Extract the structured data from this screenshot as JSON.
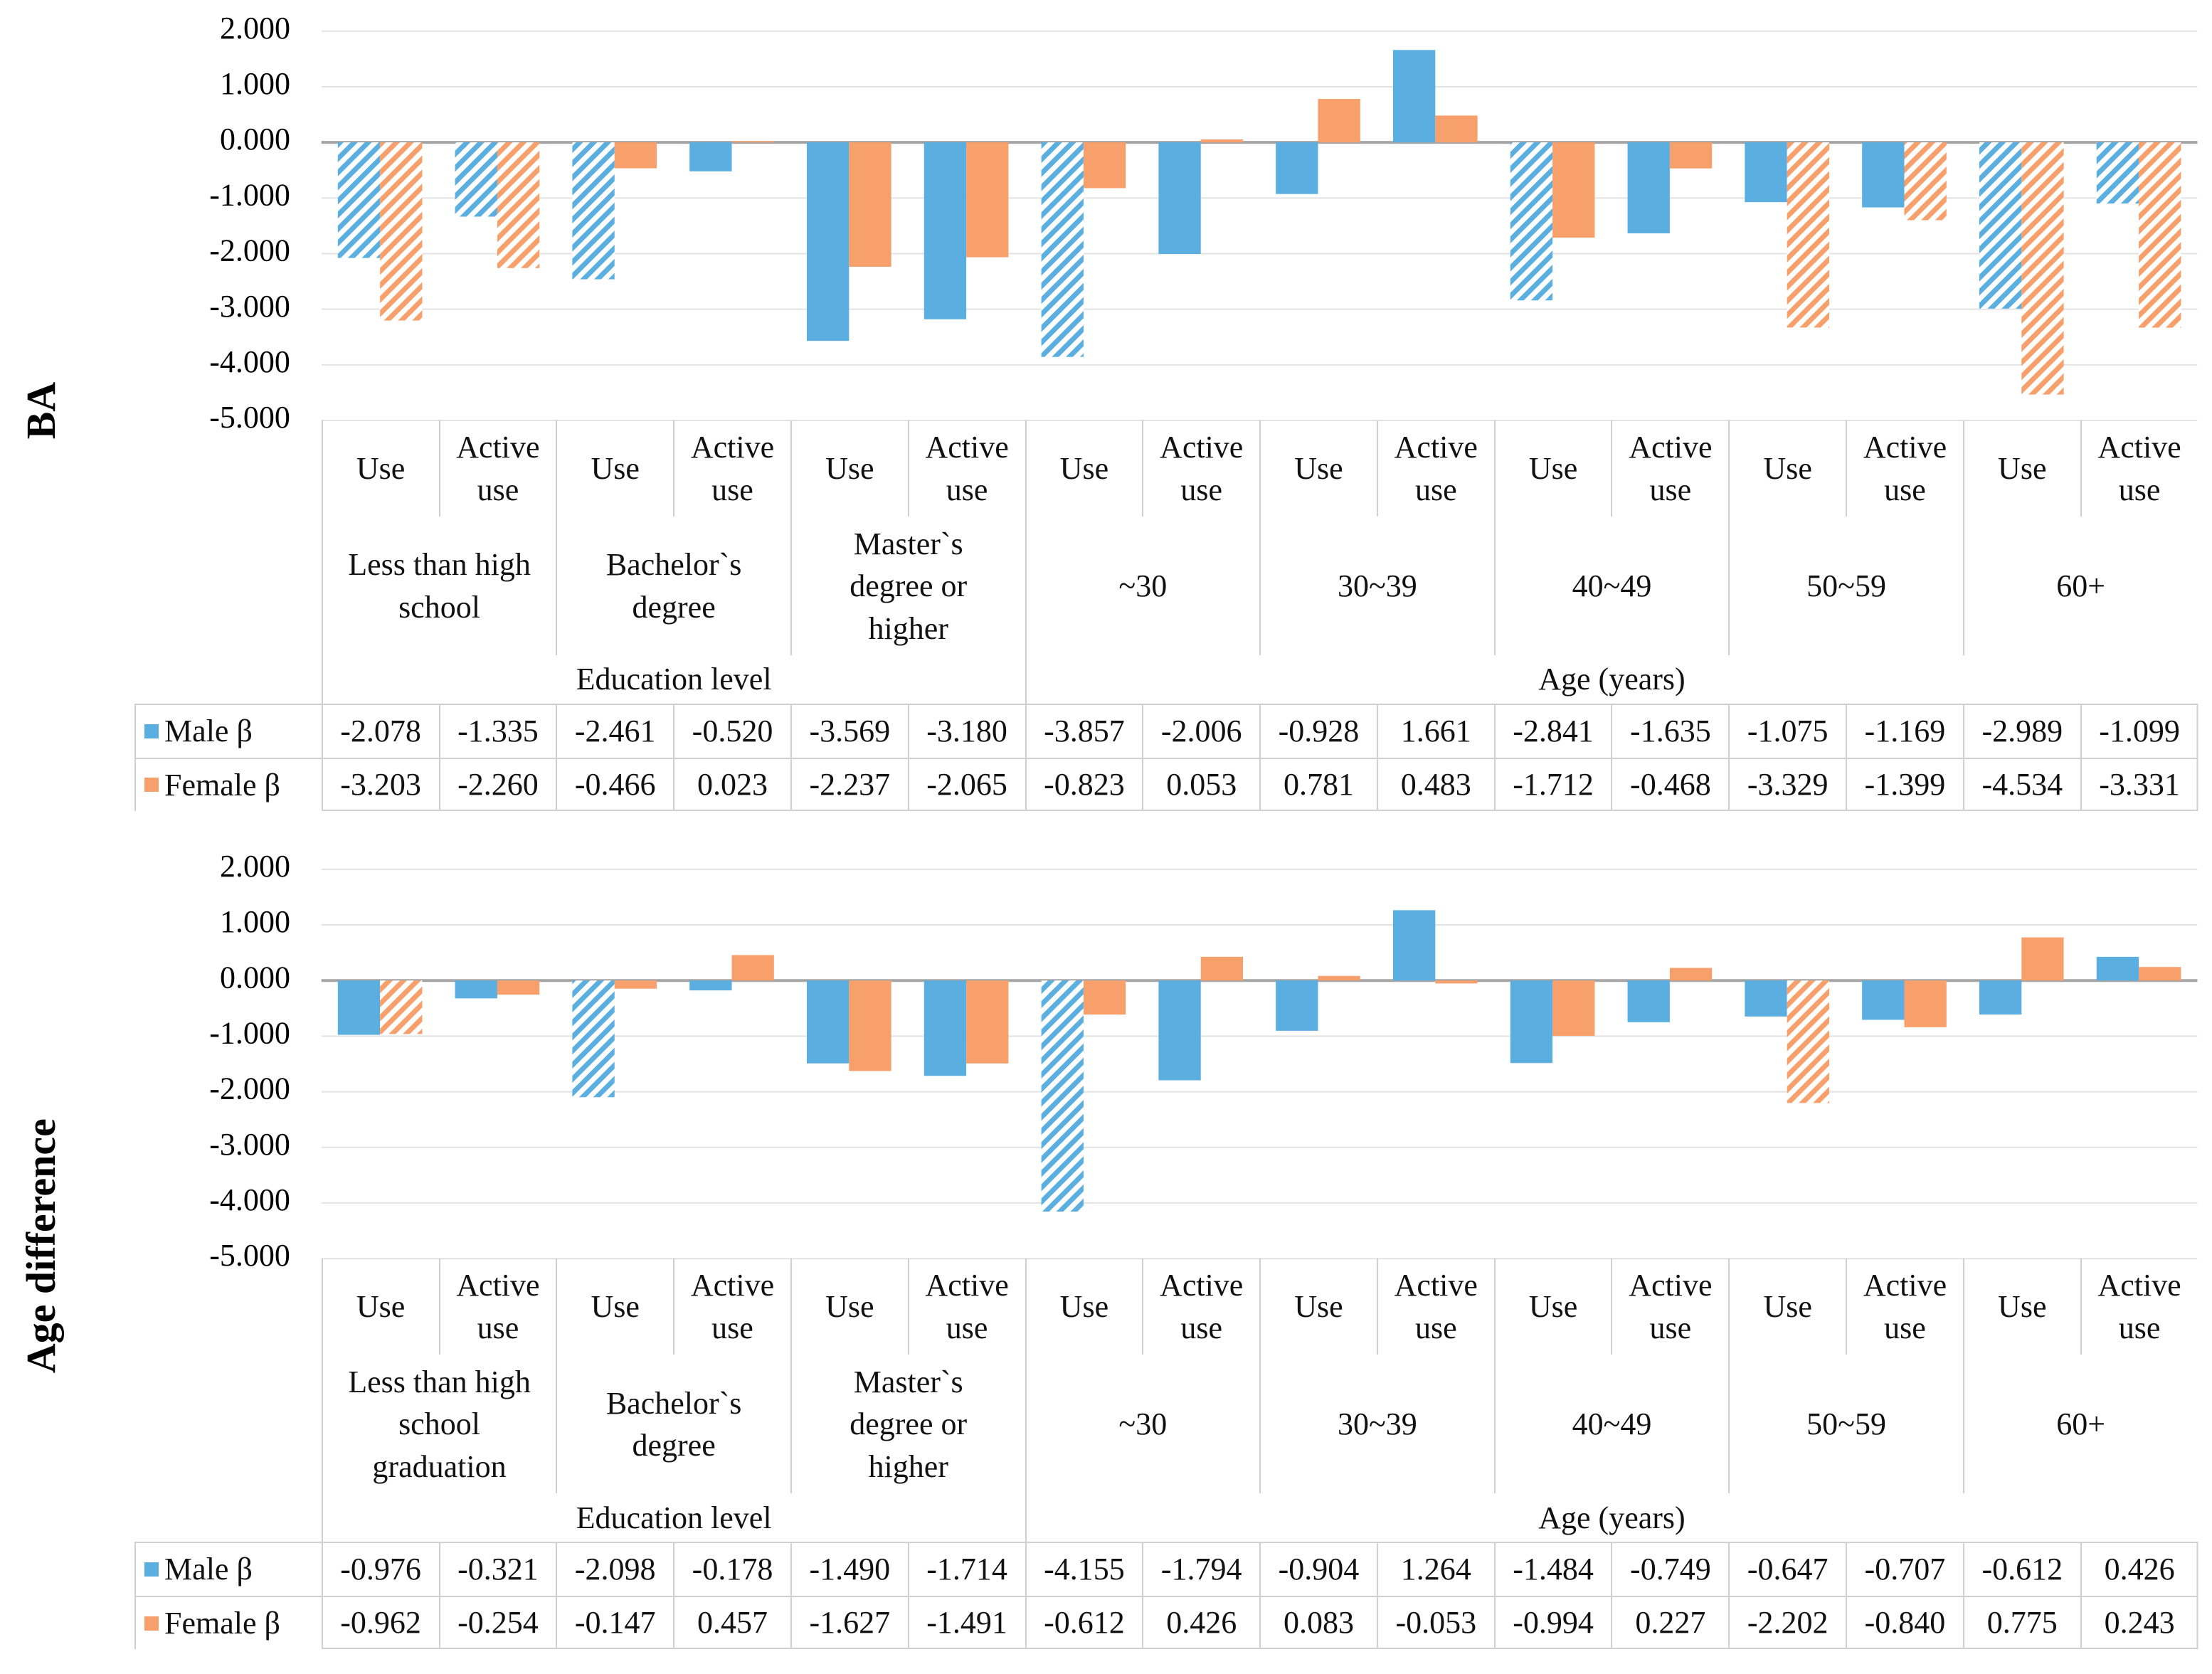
{
  "chart_data": [
    {
      "type": "bar",
      "y_label": "BA",
      "ylim": [
        -5,
        2
      ],
      "yticks": [
        {
          "value": 2,
          "label": "2.000"
        },
        {
          "value": 1,
          "label": "1.000"
        },
        {
          "value": 0,
          "label": "0.000"
        },
        {
          "value": -1,
          "label": "-1.000"
        },
        {
          "value": -2,
          "label": "-2.000"
        },
        {
          "value": -3,
          "label": "-3.000"
        },
        {
          "value": -4,
          "label": "-4.000"
        },
        {
          "value": -5,
          "label": "-5.000"
        }
      ],
      "grid": true,
      "categories": [
        [
          "Use",
          "Less than high school",
          "Education level"
        ],
        [
          "Active use",
          "Less than high school",
          "Education level"
        ],
        [
          "Use",
          "Bachelor`s degree",
          "Education level"
        ],
        [
          "Active use",
          "Bachelor`s degree",
          "Education level"
        ],
        [
          "Use",
          "Master`s degree or higher",
          "Education level"
        ],
        [
          "Active use",
          "Master`s degree or higher",
          "Education level"
        ],
        [
          "Use",
          "~30",
          "Age (years)"
        ],
        [
          "Active use",
          "~30",
          "Age (years)"
        ],
        [
          "Use",
          "30~39",
          "Age (years)"
        ],
        [
          "Active use",
          "30~39",
          "Age (years)"
        ],
        [
          "Use",
          "40~49",
          "Age (years)"
        ],
        [
          "Active use",
          "40~49",
          "Age (years)"
        ],
        [
          "Use",
          "50~59",
          "Age (years)"
        ],
        [
          "Active use",
          "50~59",
          "Age (years)"
        ],
        [
          "Use",
          "60+",
          "Age (years)"
        ],
        [
          "Active use",
          "60+",
          "Age (years)"
        ]
      ],
      "series": [
        {
          "name": "Male β",
          "color": "#5aafe0",
          "values": [
            -2.078,
            -1.335,
            -2.461,
            -0.52,
            -3.569,
            -3.18,
            -3.857,
            -2.006,
            -0.928,
            1.661,
            -2.841,
            -1.635,
            -1.075,
            -1.169,
            -2.989,
            -1.099
          ],
          "value_labels": [
            "-2.078",
            "-1.335",
            "-2.461",
            "-0.520",
            "-3.569",
            "-3.180",
            "-3.857",
            "-2.006",
            "-0.928",
            "1.661",
            "-2.841",
            "-1.635",
            "-1.075",
            "-1.169",
            "-2.989",
            "-1.099"
          ],
          "hatched": [
            true,
            true,
            true,
            false,
            false,
            false,
            true,
            false,
            false,
            false,
            true,
            false,
            false,
            false,
            true,
            true
          ]
        },
        {
          "name": "Female β",
          "color": "#f8a06b",
          "values": [
            -3.203,
            -2.26,
            -0.466,
            0.023,
            -2.237,
            -2.065,
            -0.823,
            0.053,
            0.781,
            0.483,
            -1.712,
            -0.468,
            -3.329,
            -1.399,
            -4.534,
            -3.331
          ],
          "value_labels": [
            "-3.203",
            "-2.260",
            "-0.466",
            "0.023",
            "-2.237",
            "-2.065",
            "-0.823",
            "0.053",
            "0.781",
            "0.483",
            "-1.712",
            "-0.468",
            "-3.329",
            "-1.399",
            "-4.534",
            "-3.331"
          ],
          "hatched": [
            true,
            true,
            false,
            false,
            false,
            false,
            false,
            false,
            false,
            false,
            false,
            false,
            true,
            true,
            true,
            true
          ]
        }
      ]
    },
    {
      "type": "bar",
      "y_label": "Age difference",
      "ylim": [
        -5,
        2
      ],
      "yticks": [
        {
          "value": 2,
          "label": "2.000"
        },
        {
          "value": 1,
          "label": "1.000"
        },
        {
          "value": 0,
          "label": "0.000"
        },
        {
          "value": -1,
          "label": "-1.000"
        },
        {
          "value": -2,
          "label": "-2.000"
        },
        {
          "value": -3,
          "label": "-3.000"
        },
        {
          "value": -4,
          "label": "-4.000"
        },
        {
          "value": -5,
          "label": "-5.000"
        }
      ],
      "grid": true,
      "categories": [
        [
          "Use",
          "Less than high school graduation",
          "Education level"
        ],
        [
          "Active use",
          "Less than high school graduation",
          "Education level"
        ],
        [
          "Use",
          "Bachelor`s degree",
          "Education level"
        ],
        [
          "Active use",
          "Bachelor`s degree",
          "Education level"
        ],
        [
          "Use",
          "Master`s degree or higher",
          "Education level"
        ],
        [
          "Active use",
          "Master`s degree or higher",
          "Education level"
        ],
        [
          "Use",
          "~30",
          "Age (years)"
        ],
        [
          "Active use",
          "~30",
          "Age (years)"
        ],
        [
          "Use",
          "30~39",
          "Age (years)"
        ],
        [
          "Active use",
          "30~39",
          "Age (years)"
        ],
        [
          "Use",
          "40~49",
          "Age (years)"
        ],
        [
          "Active use",
          "40~49",
          "Age (years)"
        ],
        [
          "Use",
          "50~59",
          "Age (years)"
        ],
        [
          "Active use",
          "50~59",
          "Age (years)"
        ],
        [
          "Use",
          "60+",
          "Age (years)"
        ],
        [
          "Active use",
          "60+",
          "Age (years)"
        ]
      ],
      "series": [
        {
          "name": "Male β",
          "color": "#5aafe0",
          "values": [
            -0.976,
            -0.321,
            -2.098,
            -0.178,
            -1.49,
            -1.714,
            -4.155,
            -1.794,
            -0.904,
            1.264,
            -1.484,
            -0.749,
            -0.647,
            -0.707,
            -0.612,
            0.426
          ],
          "value_labels": [
            "-0.976",
            "-0.321",
            "-2.098",
            "-0.178",
            "-1.490",
            "-1.714",
            "-4.155",
            "-1.794",
            "-0.904",
            "1.264",
            "-1.484",
            "-0.749",
            "-0.647",
            "-0.707",
            "-0.612",
            "0.426"
          ],
          "hatched": [
            false,
            false,
            true,
            false,
            false,
            false,
            true,
            false,
            false,
            false,
            false,
            false,
            false,
            false,
            false,
            false
          ]
        },
        {
          "name": "Female β",
          "color": "#f8a06b",
          "values": [
            -0.962,
            -0.254,
            -0.147,
            0.457,
            -1.627,
            -1.491,
            -0.612,
            0.426,
            0.083,
            -0.053,
            -0.994,
            0.227,
            -2.202,
            -0.84,
            0.775,
            0.243
          ],
          "value_labels": [
            "-0.962",
            "-0.254",
            "-0.147",
            "0.457",
            "-1.627",
            "-1.491",
            "-0.612",
            "0.426",
            "0.083",
            "-0.053",
            "-0.994",
            "0.227",
            "-2.202",
            "-0.840",
            "0.775",
            "0.243"
          ],
          "hatched": [
            true,
            false,
            false,
            false,
            false,
            false,
            false,
            false,
            false,
            false,
            false,
            false,
            true,
            false,
            false,
            false
          ]
        }
      ]
    }
  ]
}
